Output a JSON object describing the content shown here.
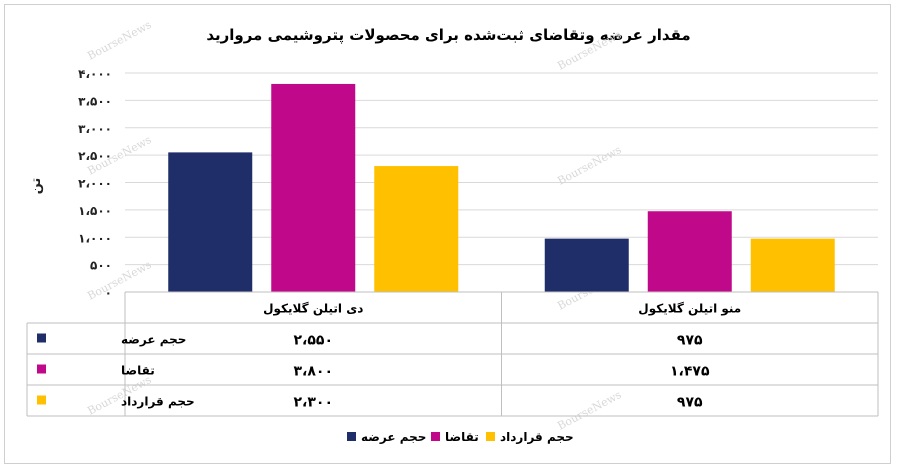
{
  "chart_data": {
    "type": "bar",
    "title": "مقدار عرضه وتقاضای ثبت‌شده برای محصولات پتروشیمی مروارید",
    "ylabel": "تن",
    "ylim": [
      0,
      4000
    ],
    "yticks": [
      0,
      500,
      1000,
      1500,
      2000,
      2500,
      3000,
      3500,
      4000
    ],
    "ytick_labels": [
      "۰",
      "۵۰۰",
      "۱،۰۰۰",
      "۱،۵۰۰",
      "۲،۰۰۰",
      "۲،۵۰۰",
      "۳،۰۰۰",
      "۳،۵۰۰",
      "۴،۰۰۰"
    ],
    "grid": true,
    "legend_position": "bottom",
    "categories": [
      "منو اتیلن گلایکول",
      "دی اتیلن گلایکول"
    ],
    "series": [
      {
        "name": "حجم عرضه",
        "color": "#1f2d69",
        "values": [
          975,
          2550
        ],
        "labels": [
          "۹۷۵",
          "۲،۵۵۰"
        ]
      },
      {
        "name": "تقاضا",
        "color": "#c0088a",
        "values": [
          1475,
          3800
        ],
        "labels": [
          "۱،۴۷۵",
          "۳،۸۰۰"
        ]
      },
      {
        "name": "حجم قرارداد",
        "color": "#ffc000",
        "values": [
          975,
          2300
        ],
        "labels": [
          "۹۷۵",
          "۲،۳۰۰"
        ]
      }
    ]
  },
  "watermark": "BourseNews"
}
